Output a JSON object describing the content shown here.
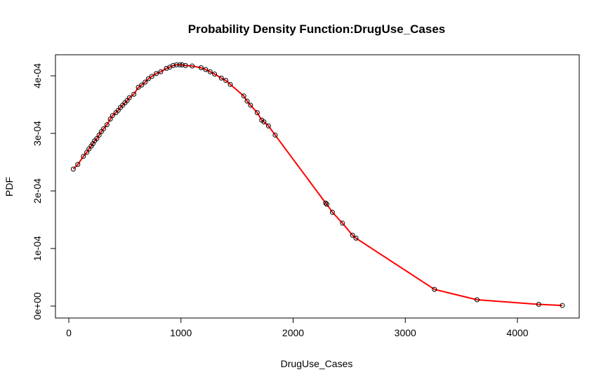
{
  "colors": {
    "curve": "#ff0000",
    "points": "#000000",
    "background": "#ffffff"
  },
  "chart_data": {
    "type": "line",
    "title": "Probability Density Function:DrugUse_Cases",
    "xlabel": "DrugUse_Cases",
    "ylabel": "PDF",
    "xlim": [
      0,
      4500
    ],
    "ylim": [
      0,
      0.00042
    ],
    "x_ticks": [
      0,
      1000,
      2000,
      3000,
      4000
    ],
    "x_tick_labels": [
      "0",
      "1000",
      "2000",
      "3000",
      "4000"
    ],
    "y_ticks": [
      0,
      0.0001,
      0.0002,
      0.0003,
      0.0004
    ],
    "y_tick_labels": [
      "0e+00",
      "1e-04",
      "2e-04",
      "3e-04",
      "4e-04"
    ],
    "grid": false,
    "legend": "none",
    "series": [
      {
        "markers": "open-circle",
        "x": [
          40,
          80,
          130,
          160,
          180,
          200,
          215,
          230,
          250,
          270,
          290,
          310,
          340,
          370,
          390,
          420,
          440,
          460,
          480,
          500,
          520,
          540,
          580,
          620,
          650,
          680,
          710,
          740,
          780,
          820,
          870,
          900,
          930,
          960,
          990,
          1010,
          1040,
          1100,
          1180,
          1220,
          1260,
          1300,
          1360,
          1400,
          1440,
          1560,
          1590,
          1620,
          1680,
          1720,
          1740,
          1780,
          1840,
          2290,
          2300,
          2350,
          2440,
          2530,
          2560,
          3260,
          3640,
          4190,
          4400
        ],
        "y": [
          0.000238,
          0.000246,
          0.00026,
          0.000267,
          0.000273,
          0.000278,
          0.000282,
          0.000287,
          0.000291,
          0.000297,
          0.000303,
          0.000308,
          0.000315,
          0.000325,
          0.000331,
          0.000336,
          0.00034,
          0.000345,
          0.000349,
          0.000353,
          0.000357,
          0.000362,
          0.000368,
          0.00038,
          0.000384,
          0.000389,
          0.000395,
          0.000399,
          0.000404,
          0.000407,
          0.000413,
          0.000415,
          0.000418,
          0.000419,
          0.000419,
          0.000419,
          0.000418,
          0.000417,
          0.000414,
          0.000411,
          0.000407,
          0.000403,
          0.000396,
          0.000392,
          0.000385,
          0.000365,
          0.000356,
          0.000349,
          0.000336,
          0.000323,
          0.00032,
          0.000313,
          0.000297,
          0.000179,
          0.000177,
          0.000163,
          0.000144,
          0.000123,
          0.000118,
          2.9e-05,
          1.1e-05,
          3e-06,
          1e-06
        ]
      }
    ]
  }
}
